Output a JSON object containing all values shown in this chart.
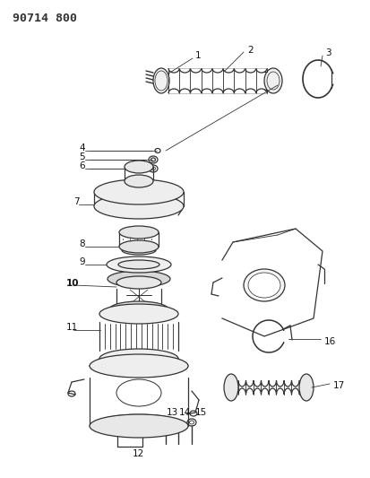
{
  "title": "90714 800",
  "bg_color": "#ffffff",
  "line_color": "#333333",
  "label_color": "#111111",
  "label_fontsize": 7.5,
  "fig_width": 4.14,
  "fig_height": 5.33,
  "dpi": 100
}
